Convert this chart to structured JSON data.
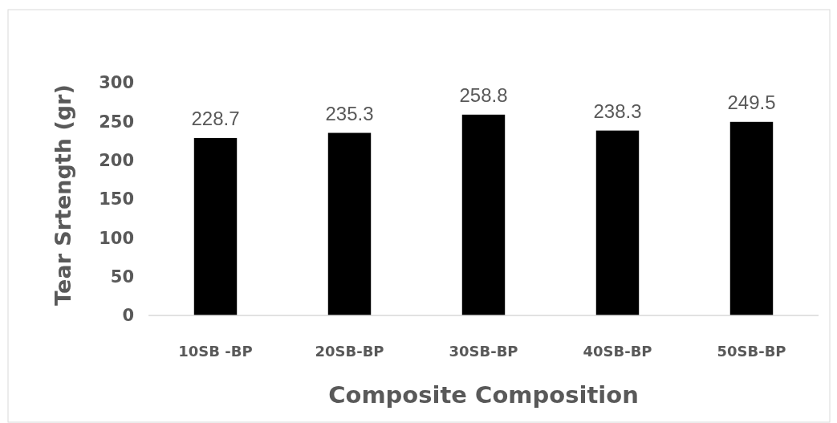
{
  "chart_data": {
    "type": "bar",
    "xlabel": "Composite Composition",
    "ylabel": "Tear Srtength (gr)",
    "categories": [
      "10SB -BP",
      "20SB-BP",
      "30SB-BP",
      "40SB-BP",
      "50SB-BP"
    ],
    "values": [
      228.7,
      235.3,
      258.8,
      238.3,
      249.5
    ],
    "color": "#000000",
    "ylim": [
      0,
      300
    ],
    "yticks": [
      0,
      50,
      100,
      150,
      200,
      250,
      300
    ],
    "grid": false,
    "data_labels": true
  }
}
